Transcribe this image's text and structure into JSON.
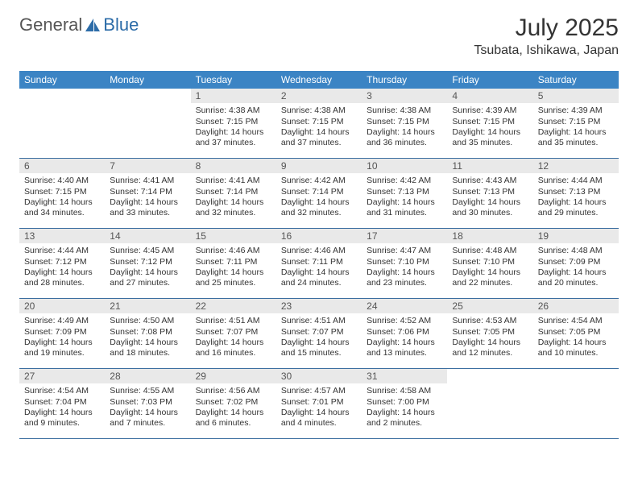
{
  "brand": {
    "part1": "General",
    "part2": "Blue"
  },
  "title": "July 2025",
  "location": "Tsubata, Ishikawa, Japan",
  "colors": {
    "header_bg": "#3b84c4",
    "header_text": "#ffffff",
    "cell_num_bg": "#e9e9e9",
    "week_border": "#3b6ea0",
    "logo_accent": "#2c6ca8"
  },
  "day_names": [
    "Sunday",
    "Monday",
    "Tuesday",
    "Wednesday",
    "Thursday",
    "Friday",
    "Saturday"
  ],
  "weeks": [
    [
      {
        "num": "",
        "sunrise": "",
        "sunset": "",
        "daylight": ""
      },
      {
        "num": "",
        "sunrise": "",
        "sunset": "",
        "daylight": ""
      },
      {
        "num": "1",
        "sunrise": "Sunrise: 4:38 AM",
        "sunset": "Sunset: 7:15 PM",
        "daylight": "Daylight: 14 hours and 37 minutes."
      },
      {
        "num": "2",
        "sunrise": "Sunrise: 4:38 AM",
        "sunset": "Sunset: 7:15 PM",
        "daylight": "Daylight: 14 hours and 37 minutes."
      },
      {
        "num": "3",
        "sunrise": "Sunrise: 4:38 AM",
        "sunset": "Sunset: 7:15 PM",
        "daylight": "Daylight: 14 hours and 36 minutes."
      },
      {
        "num": "4",
        "sunrise": "Sunrise: 4:39 AM",
        "sunset": "Sunset: 7:15 PM",
        "daylight": "Daylight: 14 hours and 35 minutes."
      },
      {
        "num": "5",
        "sunrise": "Sunrise: 4:39 AM",
        "sunset": "Sunset: 7:15 PM",
        "daylight": "Daylight: 14 hours and 35 minutes."
      }
    ],
    [
      {
        "num": "6",
        "sunrise": "Sunrise: 4:40 AM",
        "sunset": "Sunset: 7:15 PM",
        "daylight": "Daylight: 14 hours and 34 minutes."
      },
      {
        "num": "7",
        "sunrise": "Sunrise: 4:41 AM",
        "sunset": "Sunset: 7:14 PM",
        "daylight": "Daylight: 14 hours and 33 minutes."
      },
      {
        "num": "8",
        "sunrise": "Sunrise: 4:41 AM",
        "sunset": "Sunset: 7:14 PM",
        "daylight": "Daylight: 14 hours and 32 minutes."
      },
      {
        "num": "9",
        "sunrise": "Sunrise: 4:42 AM",
        "sunset": "Sunset: 7:14 PM",
        "daylight": "Daylight: 14 hours and 32 minutes."
      },
      {
        "num": "10",
        "sunrise": "Sunrise: 4:42 AM",
        "sunset": "Sunset: 7:13 PM",
        "daylight": "Daylight: 14 hours and 31 minutes."
      },
      {
        "num": "11",
        "sunrise": "Sunrise: 4:43 AM",
        "sunset": "Sunset: 7:13 PM",
        "daylight": "Daylight: 14 hours and 30 minutes."
      },
      {
        "num": "12",
        "sunrise": "Sunrise: 4:44 AM",
        "sunset": "Sunset: 7:13 PM",
        "daylight": "Daylight: 14 hours and 29 minutes."
      }
    ],
    [
      {
        "num": "13",
        "sunrise": "Sunrise: 4:44 AM",
        "sunset": "Sunset: 7:12 PM",
        "daylight": "Daylight: 14 hours and 28 minutes."
      },
      {
        "num": "14",
        "sunrise": "Sunrise: 4:45 AM",
        "sunset": "Sunset: 7:12 PM",
        "daylight": "Daylight: 14 hours and 27 minutes."
      },
      {
        "num": "15",
        "sunrise": "Sunrise: 4:46 AM",
        "sunset": "Sunset: 7:11 PM",
        "daylight": "Daylight: 14 hours and 25 minutes."
      },
      {
        "num": "16",
        "sunrise": "Sunrise: 4:46 AM",
        "sunset": "Sunset: 7:11 PM",
        "daylight": "Daylight: 14 hours and 24 minutes."
      },
      {
        "num": "17",
        "sunrise": "Sunrise: 4:47 AM",
        "sunset": "Sunset: 7:10 PM",
        "daylight": "Daylight: 14 hours and 23 minutes."
      },
      {
        "num": "18",
        "sunrise": "Sunrise: 4:48 AM",
        "sunset": "Sunset: 7:10 PM",
        "daylight": "Daylight: 14 hours and 22 minutes."
      },
      {
        "num": "19",
        "sunrise": "Sunrise: 4:48 AM",
        "sunset": "Sunset: 7:09 PM",
        "daylight": "Daylight: 14 hours and 20 minutes."
      }
    ],
    [
      {
        "num": "20",
        "sunrise": "Sunrise: 4:49 AM",
        "sunset": "Sunset: 7:09 PM",
        "daylight": "Daylight: 14 hours and 19 minutes."
      },
      {
        "num": "21",
        "sunrise": "Sunrise: 4:50 AM",
        "sunset": "Sunset: 7:08 PM",
        "daylight": "Daylight: 14 hours and 18 minutes."
      },
      {
        "num": "22",
        "sunrise": "Sunrise: 4:51 AM",
        "sunset": "Sunset: 7:07 PM",
        "daylight": "Daylight: 14 hours and 16 minutes."
      },
      {
        "num": "23",
        "sunrise": "Sunrise: 4:51 AM",
        "sunset": "Sunset: 7:07 PM",
        "daylight": "Daylight: 14 hours and 15 minutes."
      },
      {
        "num": "24",
        "sunrise": "Sunrise: 4:52 AM",
        "sunset": "Sunset: 7:06 PM",
        "daylight": "Daylight: 14 hours and 13 minutes."
      },
      {
        "num": "25",
        "sunrise": "Sunrise: 4:53 AM",
        "sunset": "Sunset: 7:05 PM",
        "daylight": "Daylight: 14 hours and 12 minutes."
      },
      {
        "num": "26",
        "sunrise": "Sunrise: 4:54 AM",
        "sunset": "Sunset: 7:05 PM",
        "daylight": "Daylight: 14 hours and 10 minutes."
      }
    ],
    [
      {
        "num": "27",
        "sunrise": "Sunrise: 4:54 AM",
        "sunset": "Sunset: 7:04 PM",
        "daylight": "Daylight: 14 hours and 9 minutes."
      },
      {
        "num": "28",
        "sunrise": "Sunrise: 4:55 AM",
        "sunset": "Sunset: 7:03 PM",
        "daylight": "Daylight: 14 hours and 7 minutes."
      },
      {
        "num": "29",
        "sunrise": "Sunrise: 4:56 AM",
        "sunset": "Sunset: 7:02 PM",
        "daylight": "Daylight: 14 hours and 6 minutes."
      },
      {
        "num": "30",
        "sunrise": "Sunrise: 4:57 AM",
        "sunset": "Sunset: 7:01 PM",
        "daylight": "Daylight: 14 hours and 4 minutes."
      },
      {
        "num": "31",
        "sunrise": "Sunrise: 4:58 AM",
        "sunset": "Sunset: 7:00 PM",
        "daylight": "Daylight: 14 hours and 2 minutes."
      },
      {
        "num": "",
        "sunrise": "",
        "sunset": "",
        "daylight": ""
      },
      {
        "num": "",
        "sunrise": "",
        "sunset": "",
        "daylight": ""
      }
    ]
  ]
}
